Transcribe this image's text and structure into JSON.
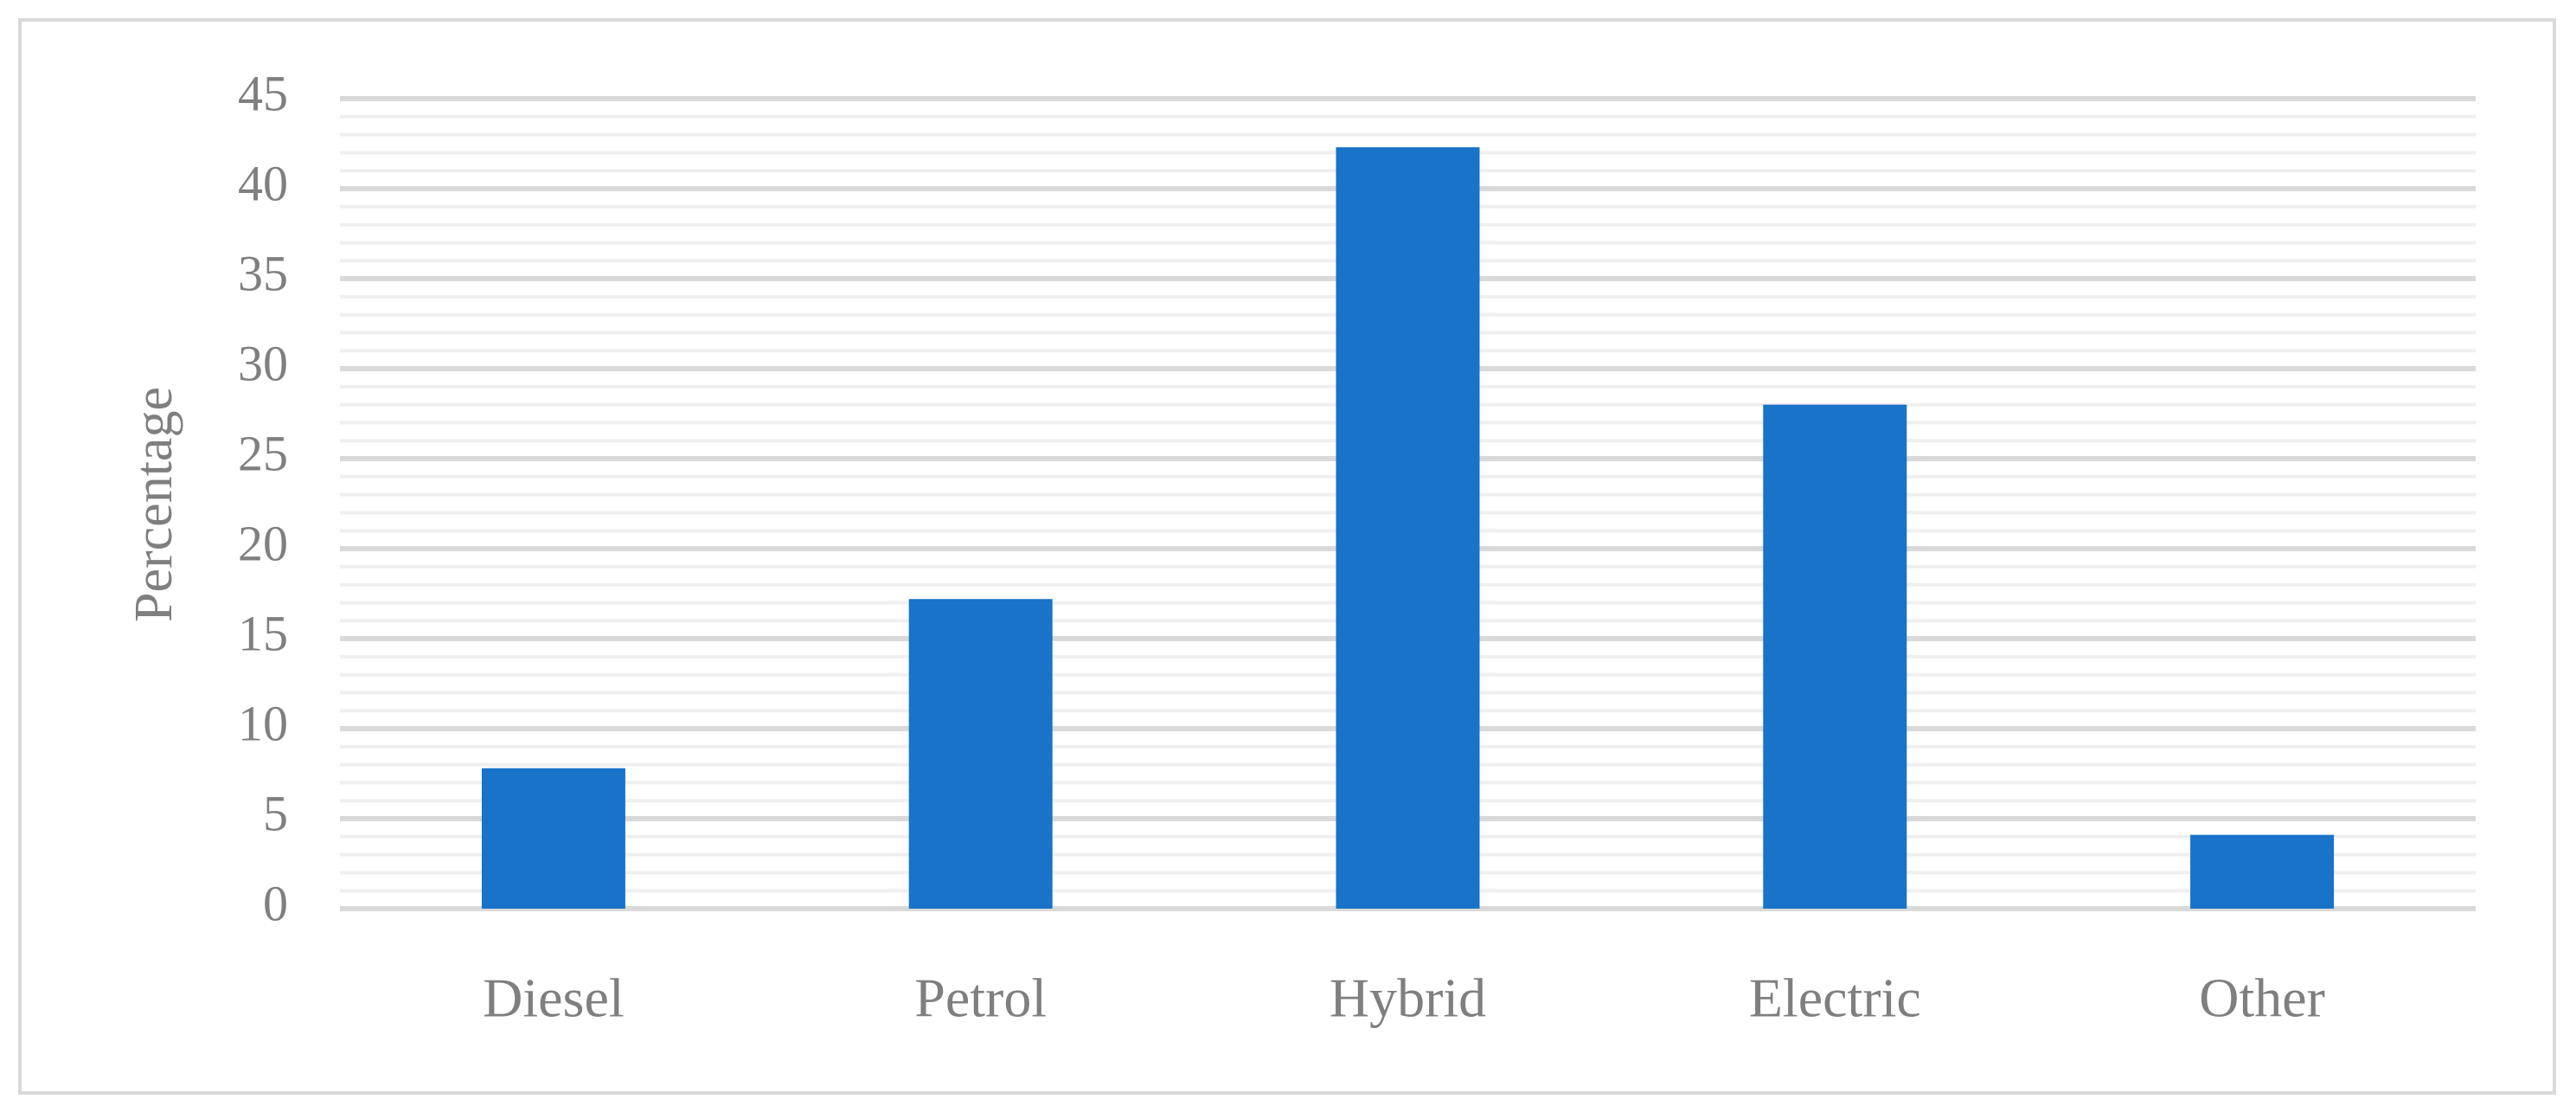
{
  "chart_data": {
    "type": "bar",
    "y_label": "Percentage",
    "categories": [
      "Diesel",
      "Petrol",
      "Hybrid",
      "Electric",
      "Other"
    ],
    "values": [
      7.8,
      17.2,
      42.3,
      28.0,
      4.1
    ],
    "color": "#1873c9",
    "ylim": [
      0,
      45
    ],
    "yticks": [
      0,
      5,
      10,
      15,
      20,
      25,
      30,
      35,
      40,
      45
    ],
    "grid": true,
    "minor_grid": true
  }
}
